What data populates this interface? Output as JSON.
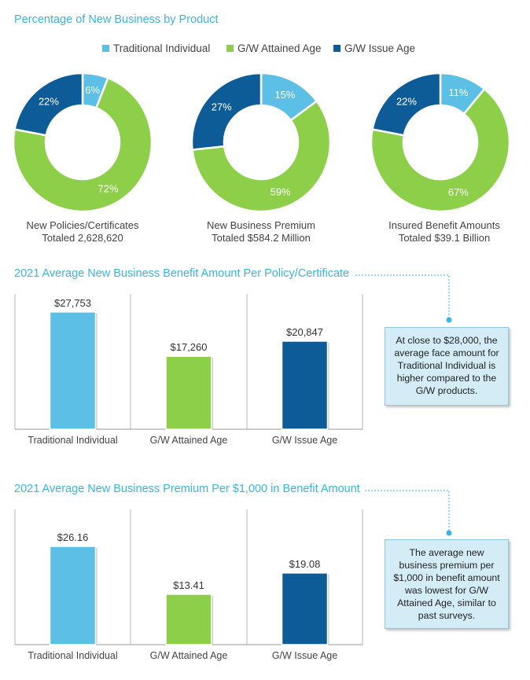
{
  "donut_section": {
    "title": "Percentage of New Business by Product",
    "legend": [
      {
        "label": "Traditional Individual",
        "color": "#5bbfe6"
      },
      {
        "label": "G/W Attained Age",
        "color": "#8ecf4a"
      },
      {
        "label": "G/W Issue Age",
        "color": "#0e5c97"
      }
    ],
    "charts": [
      {
        "caption_line1": "New Policies/Certificates",
        "caption_line2": "Totaled 2,628,620"
      },
      {
        "caption_line1": "New Business Premium",
        "caption_line2": "Totaled $584.2 Million"
      },
      {
        "caption_line1": "Insured Benefit Amounts",
        "caption_line2": "Totaled $39.1 Billion"
      }
    ]
  },
  "bar_section_1": {
    "title": "2021 Average New Business Benefit Amount Per Policy/Certificate",
    "callout": "At close to $28,000, the average face amount for Traditional Individual is higher compared to the G/W products."
  },
  "bar_section_2": {
    "title": "2021 Average New Business Premium Per $1,000 in Benefit Amount",
    "callout": "The average new business premium per $1,000 in benefit amount was lowest for G/W Attained Age, similar to past surveys."
  },
  "chart_data": [
    {
      "type": "pie",
      "categories": [
        "Traditional Individual",
        "G/W Attained Age",
        "G/W Issue Age"
      ],
      "values": [
        6,
        72,
        22
      ],
      "labels": [
        "6%",
        "72%",
        "22%"
      ]
    },
    {
      "type": "pie",
      "categories": [
        "Traditional Individual",
        "G/W Attained Age",
        "G/W Issue Age"
      ],
      "values": [
        15,
        59,
        27
      ],
      "labels": [
        "15%",
        "59%",
        "27%"
      ]
    },
    {
      "type": "pie",
      "categories": [
        "Traditional Individual",
        "G/W Attained Age",
        "G/W Issue Age"
      ],
      "values": [
        11,
        67,
        22
      ],
      "labels": [
        "11%",
        "67%",
        "22%"
      ]
    },
    {
      "type": "bar",
      "categories": [
        "Traditional Individual",
        "G/W Attained Age",
        "G/W Issue Age"
      ],
      "values": [
        27753,
        17260,
        20847
      ],
      "labels": [
        "$27,753",
        "$17,260",
        "$20,847"
      ],
      "ylim": [
        0,
        32000
      ]
    },
    {
      "type": "bar",
      "categories": [
        "Traditional Individual",
        "G/W Attained Age",
        "G/W Issue Age"
      ],
      "values": [
        26.16,
        13.41,
        19.08
      ],
      "labels": [
        "$26.16",
        "$13.41",
        "$19.08"
      ],
      "ylim": [
        0,
        36
      ]
    }
  ]
}
